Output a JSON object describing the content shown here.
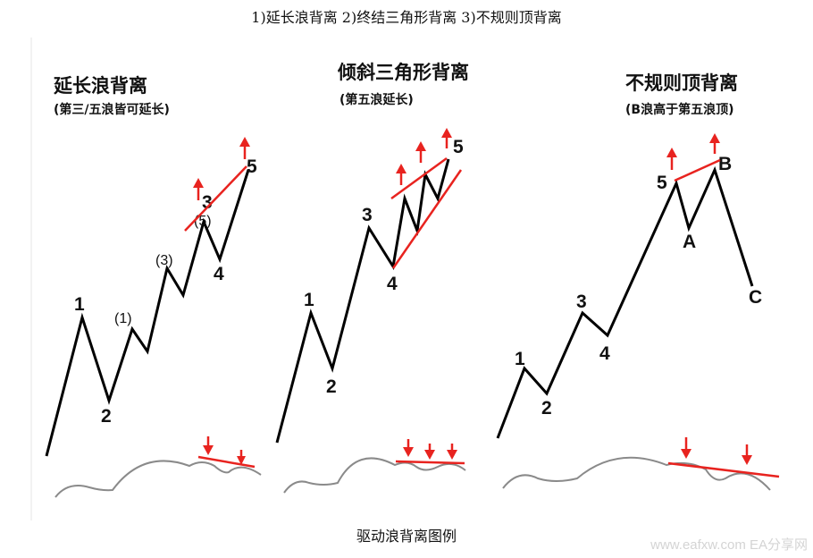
{
  "header": {
    "title": "1)延长浪背离 2)终结三角形背离 3)不规则顶背离"
  },
  "panels": [
    {
      "title": "延长浪背离",
      "subtitle": "(第三/五浪皆可延长)",
      "labels": [
        "1",
        "2",
        "(1)",
        "(3)",
        "(5)",
        "3",
        "4",
        "5"
      ]
    },
    {
      "title": "倾斜三角形背离",
      "subtitle": "(第五浪延长)",
      "labels": [
        "1",
        "2",
        "3",
        "4",
        "5"
      ]
    },
    {
      "title": "不规则顶背离",
      "subtitle": "(B浪高于第五浪顶)",
      "labels": [
        "1",
        "2",
        "3",
        "4",
        "5",
        "A",
        "B",
        "C"
      ]
    }
  ],
  "caption": "驱动浪背离图例",
  "watermark": "www.eafxw.com  EA分享网",
  "colors": {
    "wave": "#000000",
    "divergence": "#e8231f",
    "oscillator": "#8a8a8a"
  }
}
